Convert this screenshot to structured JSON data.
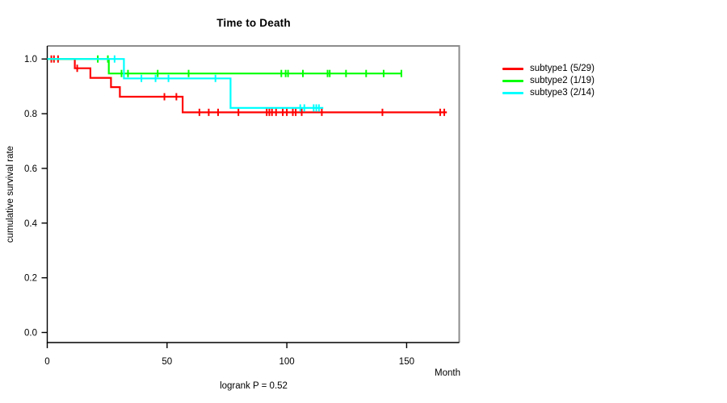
{
  "page": {
    "background": "#FFFFFF"
  },
  "chart_data": {
    "type": "line",
    "subtype": "kaplan-meier-step",
    "title": "Time to Death",
    "xlabel": "Month",
    "ylabel": "cumulative survival rate",
    "annotation": "logrank P = 0.52",
    "x_ticks": [
      0,
      50,
      100,
      150
    ],
    "y_ticks": [
      0.0,
      0.2,
      0.4,
      0.6,
      0.8,
      1.0
    ],
    "xlim": [
      0,
      172
    ],
    "ylim": [
      0.0,
      1.0
    ],
    "grid": false,
    "legend_position": "right-outside",
    "axis_colors": {
      "box_top_right": "#8c8c8c",
      "axis": "#000000"
    },
    "series": [
      {
        "name": "subtype1",
        "legend_label": "subtype1 (5/29)",
        "events": 5,
        "n": 29,
        "color": "#FF0000",
        "steps": [
          [
            0,
            1.0
          ],
          [
            11.5,
            1.0
          ],
          [
            11.5,
            0.966
          ],
          [
            18.0,
            0.966
          ],
          [
            18.0,
            0.931
          ],
          [
            26.6,
            0.931
          ],
          [
            26.6,
            0.897
          ],
          [
            30.3,
            0.897
          ],
          [
            30.3,
            0.862
          ],
          [
            56.5,
            0.862
          ],
          [
            56.5,
            0.805
          ],
          [
            166.8,
            0.805
          ]
        ],
        "censors": [
          [
            1.7,
            1.0
          ],
          [
            2.8,
            1.0
          ],
          [
            4.5,
            1.0
          ],
          [
            12.5,
            0.966
          ],
          [
            48.9,
            0.862
          ],
          [
            53.9,
            0.862
          ],
          [
            63.5,
            0.805
          ],
          [
            67.4,
            0.805
          ],
          [
            71.3,
            0.805
          ],
          [
            79.8,
            0.805
          ],
          [
            91.6,
            0.805
          ],
          [
            92.7,
            0.805
          ],
          [
            93.8,
            0.805
          ],
          [
            95.5,
            0.805
          ],
          [
            98.3,
            0.805
          ],
          [
            100.0,
            0.805
          ],
          [
            102.5,
            0.805
          ],
          [
            103.7,
            0.805
          ],
          [
            106.2,
            0.805
          ],
          [
            114.6,
            0.805
          ],
          [
            139.9,
            0.805
          ],
          [
            164.0,
            0.805
          ],
          [
            165.7,
            0.805
          ]
        ]
      },
      {
        "name": "subtype2",
        "legend_label": "subtype2 (1/19)",
        "events": 1,
        "n": 19,
        "color": "#00FF00",
        "steps": [
          [
            0,
            1.0
          ],
          [
            25.7,
            1.0
          ],
          [
            25.7,
            0.947
          ],
          [
            147.8,
            0.947
          ]
        ],
        "censors": [
          [
            21.1,
            1.0
          ],
          [
            25.3,
            1.0
          ],
          [
            31.0,
            0.947
          ],
          [
            33.7,
            0.947
          ],
          [
            46.1,
            0.947
          ],
          [
            59.0,
            0.947
          ],
          [
            97.7,
            0.947
          ],
          [
            99.5,
            0.947
          ],
          [
            100.5,
            0.947
          ],
          [
            106.7,
            0.947
          ],
          [
            117.0,
            0.947
          ],
          [
            117.9,
            0.947
          ],
          [
            124.7,
            0.947
          ],
          [
            133.1,
            0.947
          ],
          [
            140.4,
            0.947
          ],
          [
            147.8,
            0.947
          ]
        ]
      },
      {
        "name": "subtype3",
        "legend_label": "subtype3 (2/14)",
        "events": 2,
        "n": 14,
        "color": "#00FFFF",
        "steps": [
          [
            0,
            1.0
          ],
          [
            32.0,
            1.0
          ],
          [
            32.0,
            0.929
          ],
          [
            76.5,
            0.929
          ],
          [
            76.5,
            0.821
          ],
          [
            115.2,
            0.821
          ]
        ],
        "censors": [
          [
            28.1,
            1.0
          ],
          [
            39.3,
            0.929
          ],
          [
            45.2,
            0.929
          ],
          [
            50.6,
            0.929
          ],
          [
            70.2,
            0.929
          ],
          [
            105.6,
            0.821
          ],
          [
            107.3,
            0.821
          ],
          [
            111.2,
            0.821
          ],
          [
            112.3,
            0.821
          ],
          [
            113.4,
            0.821
          ]
        ]
      }
    ]
  }
}
